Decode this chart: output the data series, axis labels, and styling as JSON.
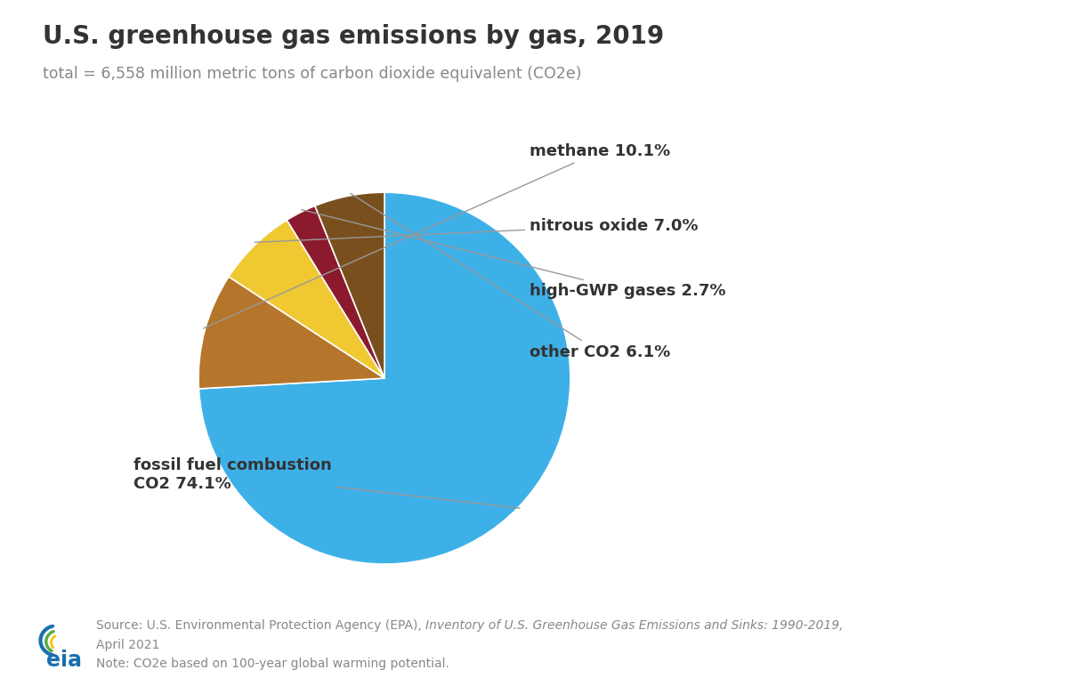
{
  "title": "U.S. greenhouse gas emissions by gas, 2019",
  "subtitle": "total = 6,558 million metric tons of carbon dioxide equivalent (CO2e)",
  "slices": [
    {
      "label": "fossil fuel combustion\nCO2 74.1%",
      "value": 74.1,
      "color": "#3eb0e8"
    },
    {
      "label": "methane 10.1%",
      "value": 10.1,
      "color": "#b5752a"
    },
    {
      "label": "nitrous oxide 7.0%",
      "value": 7.0,
      "color": "#f0c832"
    },
    {
      "label": "high-GWP gases 2.7%",
      "value": 2.7,
      "color": "#8b1a2e"
    },
    {
      "label": "other CO2 6.1%",
      "value": 6.1,
      "color": "#7a4f1e"
    }
  ],
  "source_text_normal": "Source: U.S. Environmental Protection Agency (EPA), ",
  "source_text_italic": "Inventory of U.S. Greenhouse Gas Emissions and Sinks: 1990-2019,",
  "note_text": "Note: CO2e based on 100-year global warming potential.",
  "bg_color": "#ffffff",
  "title_color": "#333333",
  "subtitle_color": "#888888",
  "label_color": "#333333",
  "footer_color": "#888888"
}
